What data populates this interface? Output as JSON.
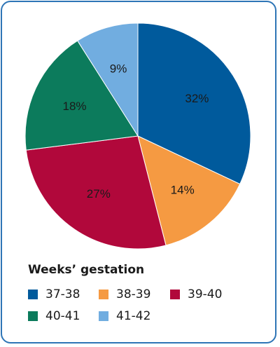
{
  "chart_data": {
    "type": "pie",
    "legend_title": "Weeks’ gestation",
    "legend_position": "bottom",
    "slices": [
      {
        "label": "37-38",
        "value": 32,
        "display": "32%",
        "color": "#005a9c"
      },
      {
        "label": "38-39",
        "value": 14,
        "display": "14%",
        "color": "#f59a42"
      },
      {
        "label": "39-40",
        "value": 27,
        "display": "27%",
        "color": "#b1083b"
      },
      {
        "label": "40-41",
        "value": 18,
        "display": "18%",
        "color": "#0c7b5c"
      },
      {
        "label": "41-42",
        "value": 9,
        "display": "9%",
        "color": "#71ade0"
      }
    ]
  }
}
